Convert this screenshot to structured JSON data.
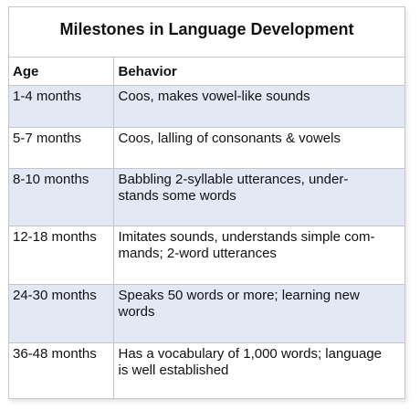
{
  "title": "Milestones in Language Development",
  "headers": {
    "age": "Age",
    "behavior": "Behavior"
  },
  "rows": [
    {
      "age": "1-4 months",
      "behavior": "Coos, makes vowel-like sounds"
    },
    {
      "age": "5-7 months",
      "behavior": "Coos, lalling of consonants & vowels"
    },
    {
      "age": "8-10 months",
      "behavior": "Babbling 2-syllable utterances, under-\nstands some words"
    },
    {
      "age": "12-18 months",
      "behavior": "Imitates sounds, understands simple com-\nmands; 2-word utterances"
    },
    {
      "age": "24-30 months",
      "behavior": "Speaks 50 words or more; learning new\nwords"
    },
    {
      "age": "36-48 months",
      "behavior": "Has a vocabulary of 1,000 words; language\nis well established"
    }
  ],
  "colors": {
    "shaded_row": "#e3e8f5",
    "border": "#c6c6c6"
  }
}
